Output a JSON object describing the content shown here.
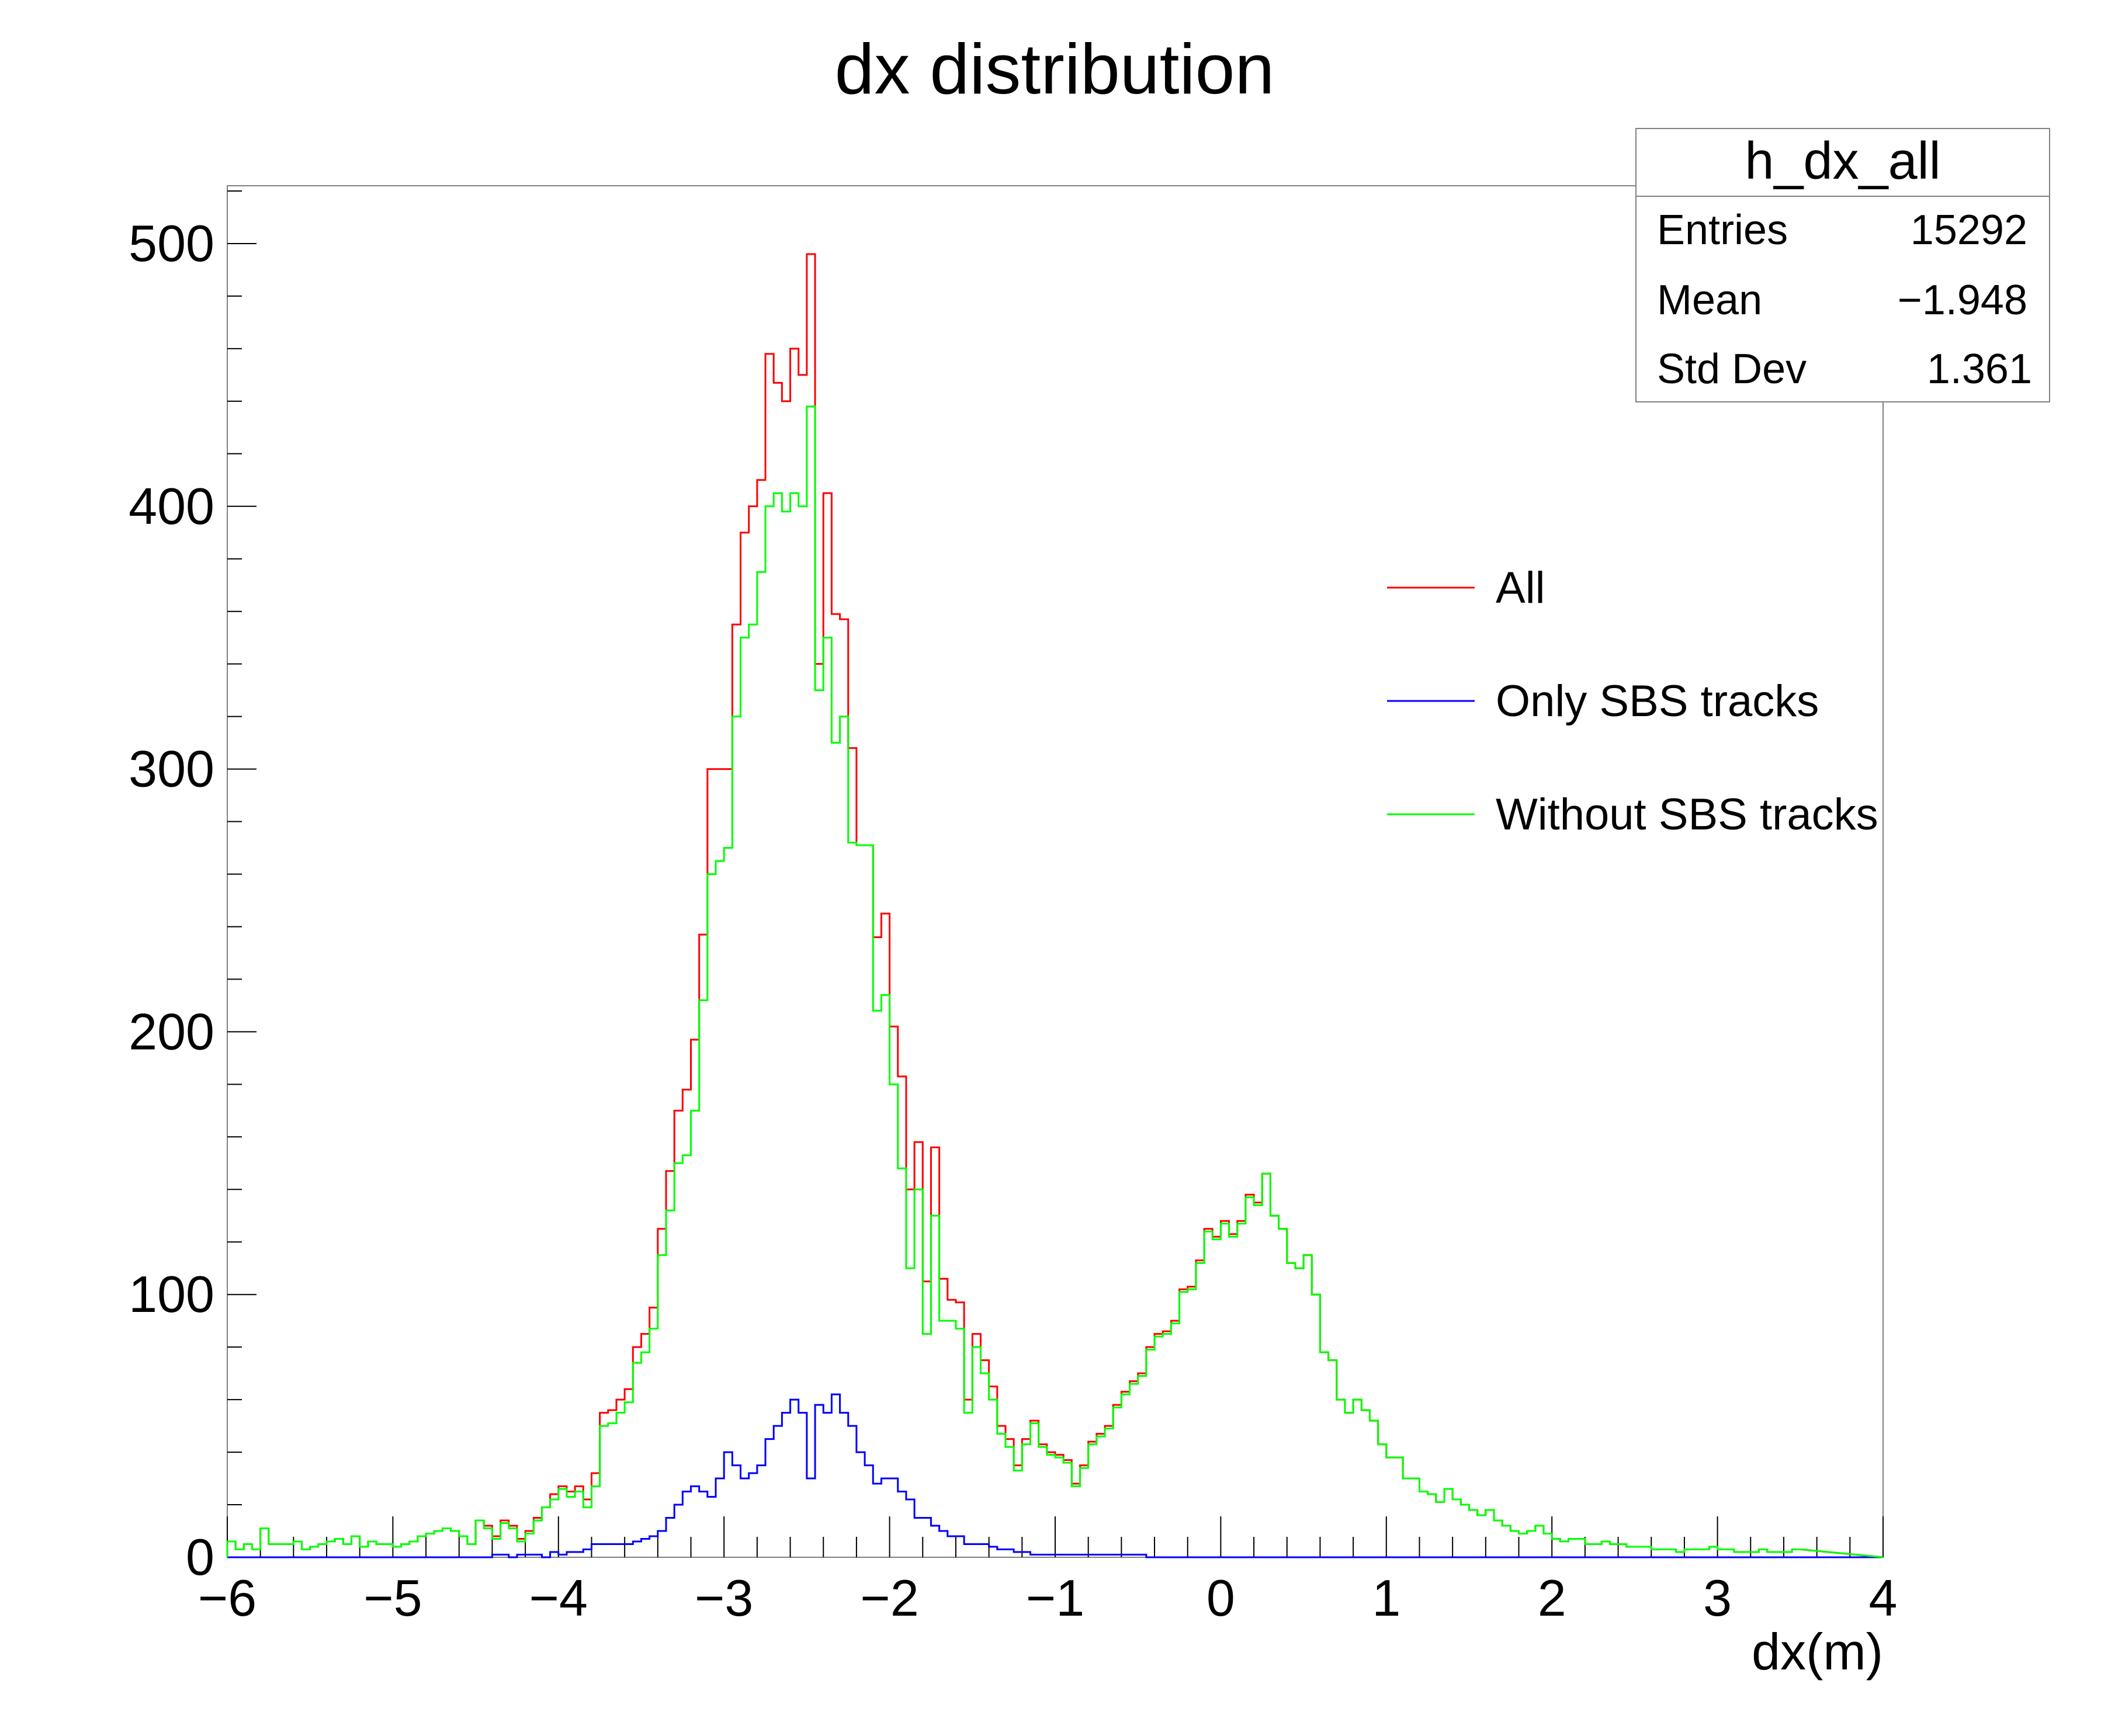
{
  "chart_data": {
    "type": "histogram",
    "title": "dx distribution",
    "xlabel": "dx(m)",
    "ylabel": "",
    "xlim": [
      -6,
      4
    ],
    "ylim": [
      0,
      522
    ],
    "bin_width": 0.05,
    "x_ticks": [
      -6,
      -5,
      -4,
      -3,
      -2,
      -1,
      0,
      1,
      2,
      3,
      4
    ],
    "x_tick_labels": [
      "−6",
      "−5",
      "−4",
      "−3",
      "−2",
      "−1",
      "0",
      "1",
      "2",
      "3",
      "4"
    ],
    "y_ticks": [
      0,
      100,
      200,
      300,
      400,
      500
    ],
    "y_tick_labels": [
      "0",
      "100",
      "200",
      "300",
      "400",
      "500"
    ],
    "stats": {
      "title": "h_dx_all",
      "rows": [
        {
          "label": "Entries",
          "value": "15292"
        },
        {
          "label": "Mean",
          "value": "−1.948"
        },
        {
          "label": "Std Dev",
          "value": "1.361"
        }
      ]
    },
    "legend": {
      "position": "right",
      "entries": [
        {
          "label": "All",
          "color": "#ff0000"
        },
        {
          "label": "Only SBS tracks",
          "color": "#0000ff"
        },
        {
          "label": "Without SBS tracks",
          "color": "#00ff00"
        }
      ]
    },
    "series": [
      {
        "name": "All",
        "color": "#ff0000",
        "values": [
          6,
          3,
          5,
          3,
          11,
          5,
          5,
          5,
          6,
          3,
          4,
          5,
          6,
          7,
          5,
          8,
          4,
          6,
          5,
          5,
          4,
          5,
          6,
          8,
          9,
          10,
          11,
          10,
          8,
          5,
          14,
          12,
          8,
          14,
          12,
          7,
          10,
          15,
          19,
          24,
          27,
          25,
          27,
          22,
          32,
          55,
          56,
          60,
          64,
          80,
          85,
          95,
          125,
          147,
          170,
          178,
          197,
          237,
          300,
          300,
          300,
          355,
          390,
          400,
          410,
          458,
          447,
          440,
          460,
          450,
          496,
          340,
          405,
          359,
          357,
          308,
          271,
          271,
          236,
          245,
          202,
          183,
          140,
          158,
          105,
          156,
          106,
          98,
          97,
          60,
          85,
          75,
          65,
          50,
          45,
          35,
          45,
          52,
          43,
          40,
          39,
          37,
          28,
          35,
          44,
          47,
          50,
          58,
          63,
          67,
          70,
          80,
          85,
          86,
          90,
          102,
          103,
          113,
          125,
          122,
          128,
          123,
          128,
          138,
          135,
          146,
          130,
          125,
          112,
          110,
          115,
          100,
          78,
          75,
          60,
          55,
          60,
          56,
          52,
          43,
          38,
          38,
          30,
          30,
          25,
          24,
          21,
          26,
          22,
          20,
          18,
          16,
          18,
          14,
          12,
          10,
          9,
          10,
          12,
          9,
          7,
          6,
          7,
          7,
          5,
          5,
          6,
          5,
          5,
          4,
          4,
          4,
          3,
          3,
          3,
          2,
          3,
          3,
          3,
          4,
          3,
          3,
          2,
          2,
          2,
          3,
          2,
          2,
          2,
          3
        ]
      },
      {
        "name": "Only SBS tracks",
        "color": "#0000ff",
        "values": [
          0,
          0,
          0,
          0,
          0,
          0,
          0,
          0,
          0,
          0,
          0,
          0,
          0,
          0,
          0,
          0,
          0,
          0,
          0,
          0,
          0,
          0,
          0,
          0,
          0,
          0,
          0,
          0,
          0,
          0,
          0,
          0,
          1,
          1,
          0,
          1,
          1,
          1,
          0,
          2,
          1,
          2,
          2,
          3,
          5,
          5,
          5,
          5,
          5,
          6,
          7,
          8,
          10,
          15,
          20,
          25,
          27,
          25,
          23,
          30,
          40,
          35,
          30,
          32,
          35,
          45,
          50,
          55,
          60,
          55,
          30,
          58,
          55,
          62,
          55,
          50,
          40,
          35,
          28,
          30,
          30,
          25,
          22,
          15,
          15,
          12,
          10,
          8,
          8,
          5,
          5,
          5,
          4,
          3,
          3,
          2,
          2,
          1,
          1,
          1,
          1,
          1,
          1,
          1,
          1,
          1,
          1,
          1,
          1,
          1,
          1,
          0,
          0,
          0,
          0,
          0,
          0,
          0,
          0,
          0,
          0,
          0,
          0,
          0,
          0,
          0,
          0,
          0,
          0,
          0,
          0,
          0,
          0,
          0,
          0,
          0,
          0,
          0,
          0,
          0,
          0,
          0,
          0,
          0,
          0,
          0,
          0,
          0,
          0,
          0,
          0,
          0,
          0,
          0,
          0,
          0,
          0,
          0,
          0,
          0,
          0,
          0,
          0,
          0,
          0,
          0,
          0,
          0,
          0,
          0,
          0,
          0,
          0,
          0,
          0,
          0,
          0,
          0,
          0,
          0,
          0,
          0,
          0,
          0,
          0,
          0,
          0,
          0,
          0,
          0,
          0,
          0,
          0,
          0,
          0,
          0
        ]
      },
      {
        "name": "Without SBS tracks",
        "color": "#00ff00",
        "values": [
          6,
          3,
          5,
          3,
          11,
          5,
          5,
          5,
          6,
          3,
          4,
          5,
          6,
          7,
          5,
          8,
          4,
          6,
          5,
          5,
          4,
          5,
          6,
          8,
          9,
          10,
          11,
          10,
          8,
          5,
          14,
          11,
          7,
          13,
          11,
          6,
          9,
          14,
          19,
          22,
          26,
          23,
          25,
          19,
          27,
          50,
          51,
          55,
          59,
          74,
          78,
          87,
          115,
          132,
          150,
          153,
          170,
          212,
          260,
          265,
          270,
          320,
          350,
          355,
          375,
          400,
          405,
          398,
          405,
          400,
          438,
          330,
          350,
          310,
          320,
          272,
          271,
          271,
          208,
          214,
          180,
          148,
          110,
          140,
          85,
          130,
          90,
          90,
          87,
          55,
          80,
          70,
          60,
          47,
          42,
          33,
          43,
          51,
          42,
          39,
          38,
          36,
          27,
          34,
          43,
          46,
          49,
          57,
          62,
          66,
          69,
          79,
          84,
          85,
          89,
          101,
          102,
          112,
          124,
          121,
          127,
          122,
          127,
          137,
          134,
          146,
          130,
          125,
          112,
          110,
          115,
          100,
          78,
          75,
          60,
          55,
          60,
          56,
          52,
          43,
          38,
          38,
          30,
          30,
          25,
          24,
          21,
          26,
          22,
          20,
          18,
          16,
          18,
          14,
          12,
          10,
          9,
          10,
          12,
          9,
          7,
          6,
          7,
          7,
          5,
          5,
          6,
          5,
          5,
          4,
          4,
          4,
          3,
          3,
          3,
          2,
          3,
          3,
          3,
          4,
          3,
          3,
          2,
          2,
          2,
          3,
          2,
          2,
          2,
          3
        ]
      }
    ]
  }
}
